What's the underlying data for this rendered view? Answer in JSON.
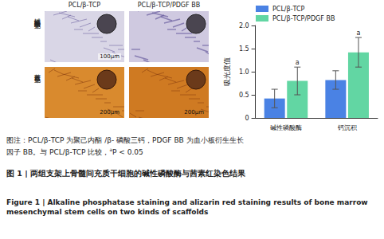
{
  "image_panels": {
    "columns": [
      "PCL/β-TCP",
      "PCL/β-TCP/PDGF BB"
    ],
    "rows": [
      {
        "label": "碱性磷酸酶染色",
        "panels": [
          {
            "scale_bar": "100μm"
          },
          {}
        ]
      },
      {
        "label": "茜素红染色",
        "panels": [
          {
            "scale_bar": "200μm"
          },
          {
            "scale_bar": "200μm"
          }
        ]
      }
    ]
  },
  "chart_data": {
    "type": "bar",
    "y_label": "吸光度值",
    "categories": [
      "碱性磷酸酶",
      "钙沉积"
    ],
    "series": [
      {
        "name": "PCL/β-TCP",
        "color": "#4a82e4",
        "values": [
          0.42,
          0.82
        ],
        "errors": [
          0.2,
          0.2
        ]
      },
      {
        "name": "PCL/β-TCP/PDGF BB",
        "color": "#62d6a3",
        "values": [
          0.8,
          1.42
        ],
        "errors": [
          0.3,
          0.32
        ]
      }
    ],
    "annotations": [
      {
        "series": "PCL/β-TCP/PDGF BB",
        "category": "碱性磷酸酶",
        "text": "a"
      },
      {
        "series": "PCL/β-TCP/PDGF BB",
        "category": "钙沉积",
        "text": "a"
      }
    ],
    "ylim": [
      0,
      2
    ],
    "yticks": [
      0,
      0.5,
      {
        "value": 1,
        "label": "1.0"
      },
      1.5,
      {
        "value": 2,
        "label": "2.0"
      }
    ],
    "grid": false,
    "legend": "top"
  },
  "caption": {
    "note_before": "图注：PCL/β-TCP 为聚己内酯 /β- 磷酸三钙，PDGF BB 为血小板衍生生长因子 BB。与 PCL/β-TCP 比较，",
    "note_sup": "a",
    "note_after": "P < 0.05",
    "title_cn": "图 1 | 两组支架上骨髓间充质干细胞的碱性磷酸酶与茜素红染色结果",
    "title_en": "Figure 1 | Alkaline phosphatase staining and alizarin red staining results of bone marrow mesenchymal stem cells on two kinds of scaffolds"
  }
}
